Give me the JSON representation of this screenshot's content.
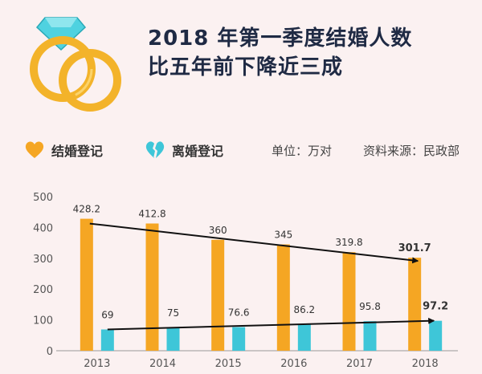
{
  "header": {
    "title_line1": "2018 年第一季度结婚人数",
    "title_line2": "比五年前下降近三成"
  },
  "legend": {
    "marriage_label": "结婚登记",
    "divorce_label": "离婚登记",
    "unit_text": "单位：万对",
    "source_text": "资料来源：民政部"
  },
  "colors": {
    "marriage": "#f5a623",
    "divorce": "#3ec6d8",
    "trend": "#111111",
    "ring_gold": "#f3b32a",
    "diamond": "#4fd2e0"
  },
  "icons": {
    "rings": "wedding-rings-icon",
    "marriage": "heart-icon",
    "divorce": "broken-heart-icon"
  },
  "chart_data": {
    "type": "bar",
    "categories": [
      "2013",
      "2014",
      "2015",
      "2016",
      "2017",
      "2018"
    ],
    "series": [
      {
        "name": "结婚登记",
        "values": [
          428.2,
          412.8,
          360,
          345,
          319.8,
          301.7
        ],
        "labels": [
          "428.2",
          "412.8",
          "360",
          "345",
          "319.8",
          "301.7"
        ]
      },
      {
        "name": "离婚登记",
        "values": [
          69,
          75,
          76.6,
          86.2,
          95.8,
          97.2
        ],
        "labels": [
          "69",
          "75",
          "76.6",
          "86.2",
          "95.8",
          "97.2"
        ]
      }
    ],
    "ylim": [
      0,
      500
    ],
    "yticks": [
      "0",
      "100",
      "200",
      "300",
      "400",
      "500"
    ],
    "grid": false,
    "legend_position": "top",
    "trend_lines": [
      {
        "series": "结婚登记",
        "from": [
          "2013",
          428.2
        ],
        "to": [
          "2018",
          301.7
        ]
      },
      {
        "series": "离婚登记",
        "from": [
          "2013",
          69
        ],
        "to": [
          "2018",
          97.2
        ]
      }
    ]
  }
}
